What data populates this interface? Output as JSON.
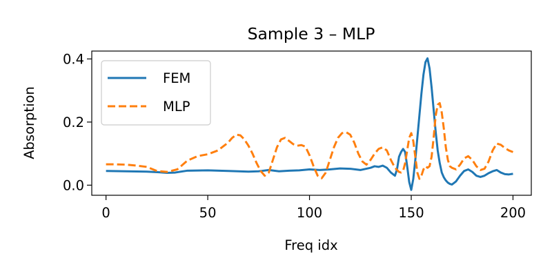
{
  "chart_data": {
    "type": "line",
    "title": "Sample 3 – MLP",
    "xlabel": "Freq idx",
    "ylabel": "Absorption",
    "xlim": [
      -7,
      209
    ],
    "ylim": [
      -0.032,
      0.425
    ],
    "xticks": [
      0,
      50,
      100,
      150,
      200
    ],
    "yticks": [
      0.0,
      0.2,
      0.4
    ],
    "ytick_labels": [
      "0.0",
      "0.2",
      "0.4"
    ],
    "grid": false,
    "legend_position": "upper-left",
    "series": [
      {
        "name": "FEM",
        "color": "#1f77b4",
        "style": "solid",
        "x": [
          0,
          10,
          20,
          26,
          30,
          34,
          40,
          50,
          60,
          70,
          75,
          80,
          85,
          90,
          95,
          100,
          105,
          110,
          115,
          120,
          125,
          130,
          132,
          134,
          136,
          138,
          140,
          142,
          143,
          144,
          145,
          146,
          147,
          148,
          149,
          150,
          151,
          152,
          153,
          154,
          155,
          156,
          157,
          158,
          159,
          160,
          161,
          162,
          163,
          164,
          165,
          166,
          167,
          168,
          169,
          170,
          172,
          174,
          176,
          178,
          180,
          182,
          184,
          186,
          188,
          190,
          192,
          194,
          196,
          198,
          200
        ],
        "y": [
          0.045,
          0.044,
          0.043,
          0.041,
          0.039,
          0.04,
          0.046,
          0.047,
          0.045,
          0.043,
          0.044,
          0.048,
          0.044,
          0.046,
          0.047,
          0.05,
          0.048,
          0.05,
          0.053,
          0.052,
          0.048,
          0.055,
          0.06,
          0.058,
          0.062,
          0.055,
          0.04,
          0.03,
          0.05,
          0.09,
          0.105,
          0.115,
          0.105,
          0.06,
          0.01,
          -0.015,
          0.02,
          0.08,
          0.15,
          0.22,
          0.29,
          0.35,
          0.39,
          0.402,
          0.37,
          0.31,
          0.24,
          0.17,
          0.11,
          0.07,
          0.04,
          0.025,
          0.015,
          0.008,
          0.004,
          0.002,
          0.012,
          0.03,
          0.045,
          0.05,
          0.042,
          0.03,
          0.026,
          0.03,
          0.038,
          0.044,
          0.048,
          0.04,
          0.035,
          0.034,
          0.036
        ]
      },
      {
        "name": "MLP",
        "color": "#ff7f0e",
        "style": "dashed",
        "x": [
          0,
          5,
          10,
          15,
          20,
          25,
          30,
          35,
          40,
          45,
          50,
          55,
          60,
          62,
          64,
          66,
          68,
          70,
          72,
          74,
          76,
          78,
          80,
          82,
          84,
          86,
          88,
          90,
          92,
          94,
          96,
          98,
          100,
          102,
          104,
          106,
          108,
          110,
          112,
          114,
          116,
          118,
          120,
          122,
          124,
          126,
          128,
          130,
          132,
          134,
          136,
          138,
          140,
          142,
          144,
          145,
          146,
          147,
          148,
          149,
          150,
          151,
          152,
          153,
          154,
          155,
          156,
          157,
          158,
          159,
          160,
          161,
          162,
          163,
          164,
          165,
          166,
          167,
          168,
          169,
          170,
          172,
          174,
          176,
          178,
          180,
          182,
          184,
          186,
          188,
          190,
          192,
          194,
          196,
          198,
          200
        ],
        "y": [
          0.066,
          0.066,
          0.065,
          0.062,
          0.058,
          0.045,
          0.042,
          0.05,
          0.078,
          0.092,
          0.098,
          0.11,
          0.135,
          0.15,
          0.16,
          0.158,
          0.145,
          0.125,
          0.1,
          0.07,
          0.045,
          0.03,
          0.04,
          0.08,
          0.12,
          0.145,
          0.15,
          0.14,
          0.13,
          0.125,
          0.127,
          0.122,
          0.095,
          0.06,
          0.03,
          0.022,
          0.04,
          0.08,
          0.12,
          0.15,
          0.165,
          0.168,
          0.16,
          0.135,
          0.1,
          0.075,
          0.065,
          0.08,
          0.1,
          0.115,
          0.12,
          0.11,
          0.08,
          0.055,
          0.042,
          0.04,
          0.045,
          0.07,
          0.11,
          0.15,
          0.165,
          0.14,
          0.09,
          0.04,
          0.02,
          0.03,
          0.05,
          0.06,
          0.055,
          0.06,
          0.09,
          0.15,
          0.22,
          0.255,
          0.26,
          0.23,
          0.18,
          0.12,
          0.08,
          0.06,
          0.055,
          0.05,
          0.065,
          0.085,
          0.092,
          0.08,
          0.06,
          0.048,
          0.052,
          0.075,
          0.11,
          0.132,
          0.128,
          0.118,
          0.11,
          0.105
        ]
      }
    ]
  }
}
